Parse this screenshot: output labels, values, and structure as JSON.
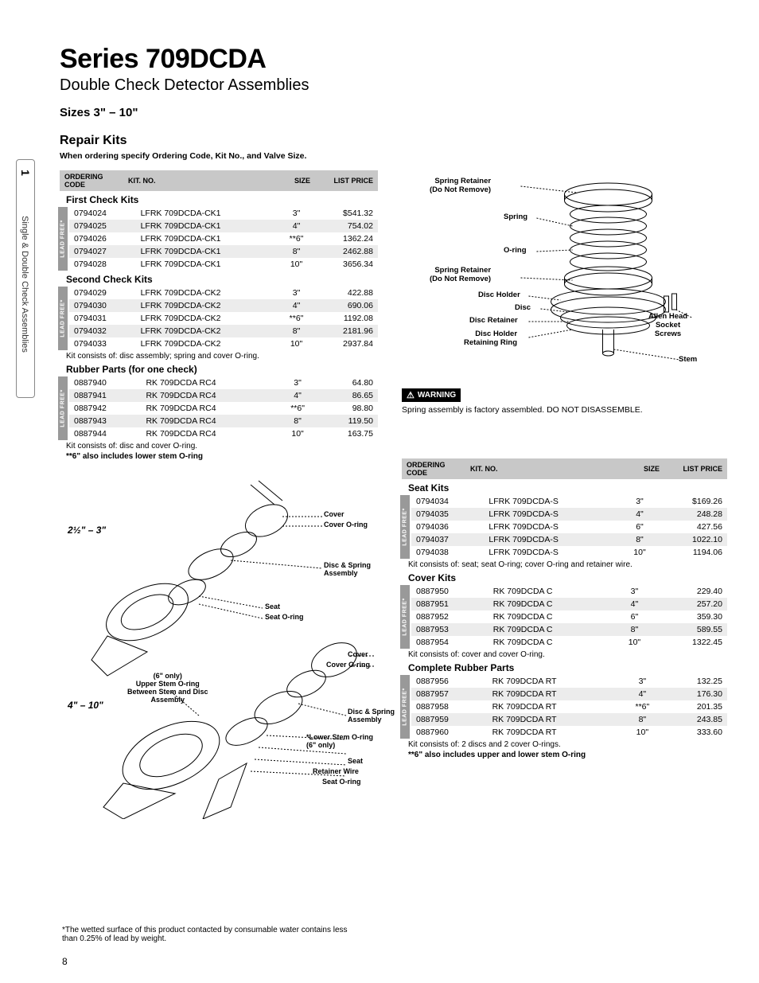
{
  "sideTab": {
    "number": "1",
    "label": "Single & Double Check Assemblies"
  },
  "header": {
    "series": "Series 709DCDA",
    "subtitle": "Double Check Detector Assemblies",
    "sizes": "Sizes 3\"  – 10\"",
    "repairKits": "Repair Kits",
    "orderingNote": "When ordering specify Ordering Code, Kit No., and Valve Size."
  },
  "tableHeaders": {
    "code": "ORDERING CODE",
    "kit": "KIT. NO.",
    "size": "SIZE",
    "price": "LIST PRICE"
  },
  "leadFreeLabel": "LEAD FREE*",
  "sections": {
    "firstCheck": {
      "title": "First Check Kits",
      "rows": [
        {
          "code": "0794024",
          "kit": "LFRK 709DCDA-CK1",
          "size": "3\"",
          "price": "$541.32"
        },
        {
          "code": "0794025",
          "kit": "LFRK 709DCDA-CK1",
          "size": "4\"",
          "price": "754.02"
        },
        {
          "code": "0794026",
          "kit": "LFRK 709DCDA-CK1",
          "size": "**6\"",
          "price": "1362.24"
        },
        {
          "code": "0794027",
          "kit": "LFRK 709DCDA-CK1",
          "size": "8\"",
          "price": "2462.88"
        },
        {
          "code": "0794028",
          "kit": "LFRK 709DCDA-CK1",
          "size": "10\"",
          "price": "3656.34"
        }
      ]
    },
    "secondCheck": {
      "title": "Second Check Kits",
      "rows": [
        {
          "code": "0794029",
          "kit": "LFRK 709DCDA-CK2",
          "size": "3\"",
          "price": "422.88"
        },
        {
          "code": "0794030",
          "kit": "LFRK 709DCDA-CK2",
          "size": "4\"",
          "price": "690.06"
        },
        {
          "code": "0794031",
          "kit": "LFRK 709DCDA-CK2",
          "size": "**6\"",
          "price": "1192.08"
        },
        {
          "code": "0794032",
          "kit": "LFRK 709DCDA-CK2",
          "size": "8\"",
          "price": "2181.96"
        },
        {
          "code": "0794033",
          "kit": "LFRK 709DCDA-CK2",
          "size": "10\"",
          "price": "2937.84"
        }
      ],
      "note": "Kit consists of: disc assembly; spring and cover O-ring."
    },
    "rubberParts": {
      "title": "Rubber Parts (for one check)",
      "rows": [
        {
          "code": "0887940",
          "kit": "RK 709DCDA RC4",
          "size": "3\"",
          "price": "64.80"
        },
        {
          "code": "0887941",
          "kit": "RK 709DCDA RC4",
          "size": "4\"",
          "price": "86.65"
        },
        {
          "code": "0887942",
          "kit": "RK 709DCDA RC4",
          "size": "**6\"",
          "price": "98.80"
        },
        {
          "code": "0887943",
          "kit": "RK 709DCDA RC4",
          "size": "8\"",
          "price": "119.50"
        },
        {
          "code": "0887944",
          "kit": "RK 709DCDA RC4",
          "size": "10\"",
          "price": "163.75"
        }
      ],
      "note1": "Kit consists of: disc and cover O-ring.",
      "note2": "**6\" also includes lower stem O-ring"
    },
    "seatKits": {
      "title": "Seat Kits",
      "rows": [
        {
          "code": "0794034",
          "kit": "LFRK 709DCDA-S",
          "size": "3\"",
          "price": "$169.26"
        },
        {
          "code": "0794035",
          "kit": "LFRK 709DCDA-S",
          "size": "4\"",
          "price": "248.28"
        },
        {
          "code": "0794036",
          "kit": "LFRK 709DCDA-S",
          "size": "6\"",
          "price": "427.56"
        },
        {
          "code": "0794037",
          "kit": "LFRK 709DCDA-S",
          "size": "8\"",
          "price": "1022.10"
        },
        {
          "code": "0794038",
          "kit": "LFRK 709DCDA-S",
          "size": "10\"",
          "price": "1194.06"
        }
      ],
      "note": "Kit consists of: seat; seat O-ring; cover O-ring and retainer wire."
    },
    "coverKits": {
      "title": "Cover Kits",
      "rows": [
        {
          "code": "0887950",
          "kit": "RK 709DCDA C",
          "size": "3\"",
          "price": "229.40"
        },
        {
          "code": "0887951",
          "kit": "RK 709DCDA C",
          "size": "4\"",
          "price": "257.20"
        },
        {
          "code": "0887952",
          "kit": "RK 709DCDA C",
          "size": "6\"",
          "price": "359.30"
        },
        {
          "code": "0887953",
          "kit": "RK 709DCDA C",
          "size": "8\"",
          "price": "589.55"
        },
        {
          "code": "0887954",
          "kit": "RK 709DCDA C",
          "size": "10\"",
          "price": "1322.45"
        }
      ],
      "note": "Kit consists of: cover and cover O-ring."
    },
    "completeRubber": {
      "title": "Complete Rubber Parts",
      "rows": [
        {
          "code": "0887956",
          "kit": "RK 709DCDA RT",
          "size": "3\"",
          "price": "132.25"
        },
        {
          "code": "0887957",
          "kit": "RK 709DCDA RT",
          "size": "4\"",
          "price": "176.30"
        },
        {
          "code": "0887958",
          "kit": "RK 709DCDA RT",
          "size": "**6\"",
          "price": "201.35"
        },
        {
          "code": "0887959",
          "kit": "RK 709DCDA RT",
          "size": "8\"",
          "price": "243.85"
        },
        {
          "code": "0887960",
          "kit": "RK 709DCDA RT",
          "size": "10\"",
          "price": "333.60"
        }
      ],
      "note1": "Kit consists of: 2 discs and 2 cover O-rings.",
      "note2": "**6\" also includes upper and lower stem O-ring"
    }
  },
  "diagram": {
    "callouts": {
      "springRetainerTop": "Spring Retainer\n(Do Not Remove)",
      "spring": "Spring",
      "oring": "O-ring",
      "springRetainerBot": "Spring Retainer\n(Do Not Remove)",
      "discHolder": "Disc Holder",
      "disc": "Disc",
      "discRetainer": "Disc Retainer",
      "discHolderRetRing": "Disc Holder\nRetaining Ring",
      "allenHead": "Allen Head\nSocket\nScrews",
      "stem": "Stem"
    },
    "stroke": "#000000",
    "fontsize": 9.5
  },
  "warning": {
    "label": "WARNING",
    "text": "Spring assembly is factory assembled. DO NOT DISASSEMBLE."
  },
  "exploded": {
    "sizeLabel1": "2½\" – 3\"",
    "sizeLabel2": "4\" – 10\"",
    "callouts": {
      "cover": "Cover",
      "coverOring": "Cover O-ring",
      "discSpring": "Disc & Spring\nAssembly",
      "seat": "Seat",
      "seatOring": "Seat O-ring",
      "upperStem": "(6\" only)\nUpper Stem O-ring\nBetween Stem and Disc\nAssembly",
      "lowerStem": "*Lower Stem O-ring\n(6\" only)",
      "retainerWire": "Retainer Wire"
    }
  },
  "footnote": "*The wetted surface of this product contacted by consumable water contains less than 0.25% of lead by weight.",
  "pageNumber": "8",
  "colors": {
    "headerBg": "#c8c8c8",
    "altRow": "#ececec",
    "leadFreeBg": "#999999"
  }
}
